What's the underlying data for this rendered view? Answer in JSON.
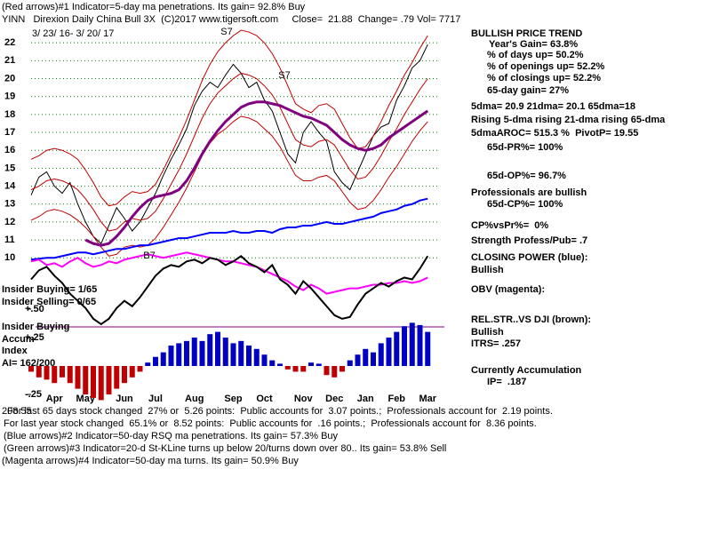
{
  "header": {
    "line1": "(Red arrows)#1 Indicator=5-day ma penetrations. Its gain= 92.8% Buy",
    "line2": "YINN   Direxion Daily China Bull 3X  (C)2017 www.tigersoft.com     Close=  21.88  Change= .79 Vol= 7717",
    "dates": "3/ 23/ 16- 3/ 20/ 17"
  },
  "right_panel": [
    "BULLISH PRICE TREND",
    "Year's Gain= 63.8%",
    "% of days up= 50.2%",
    "% of openings up= 52.2%",
    "% of closings up= 52.2%",
    "65-day gain= 27%",
    "5dma= 20.9 21dma= 20.1 65dma=18",
    "Rising 5-dma rising 21-dma rising 65-dma",
    "5dmaAROC= 515.3 %  PivotP= 19.55",
    "65d-PR%= 100%",
    "65d-OP%= 96.7%",
    "Professionals are bullish",
    "65d-CP%= 100%",
    "CP%vsPr%=  0%",
    "Strength Profess/Pub= .7",
    "CLOSING POWER (blue):",
    "Bullish",
    "OBV (magenta):",
    "REL.STR..VS DJI (brown):",
    "Bullish",
    "ITRS= .257",
    "Currently Accumulation",
    "IP=  .187"
  ],
  "left_panel": [
    "Insider Buying= 1/65",
    "Insider Selling= 0/65",
    "Insider Buying",
    "Accum",
    "Index",
    "AI= 162/200"
  ],
  "footer": [
    "208.55",
    "For last 65 days stock changed  27% or  5.26 points:  Public accounts for  3.07 points.;  Professionals account for  2.19 points.",
    "For last year stock changed  65.1% or  8.52 points:  Public accounts for  .16 points.;  Professionals account for  8.36 points.",
    "(Blue arrows)#2 Indicator=50-day RSQ ma penetrations. Its gain= 57.3% Buy",
    "(Green arrows)#3 Indicator=20-d St-KLine turns up below 20/turns down over 80.. Its gain= 53.8% Sell",
    "(Magenta arrows)#4 Indicator=50-day ma turns. Its gain= 50.9% Buy"
  ],
  "chart_data": {
    "type": "line",
    "categories": [
      null,
      null,
      null,
      "Apr",
      null,
      null,
      null,
      "May",
      null,
      null,
      null,
      null,
      "Jun",
      null,
      null,
      null,
      "Jul",
      null,
      null,
      null,
      null,
      "Aug",
      null,
      null,
      null,
      null,
      "Sep",
      null,
      null,
      null,
      "Oct",
      null,
      null,
      null,
      null,
      "Nov",
      null,
      null,
      null,
      "Dec",
      null,
      null,
      null,
      "Jan",
      null,
      null,
      null,
      "Feb",
      null,
      null,
      null,
      "Mar"
    ],
    "ylim": [
      5.9,
      22.9
    ],
    "yticks": [
      10,
      11,
      12,
      13,
      14,
      15,
      16,
      17,
      18,
      19,
      20,
      21,
      22
    ],
    "grid": true,
    "y2lim": [
      -0.3,
      0.55
    ],
    "y2ticks": [
      {
        "value": 0.5,
        "label": "+.50"
      },
      {
        "value": 0.25,
        "label": "+.25"
      },
      {
        "value": -0.25,
        "label": "-.25"
      }
    ],
    "annotations": [
      "S7",
      "S7",
      "B7"
    ],
    "series": [
      {
        "color": "#000000",
        "values": [
          13.5,
          14.5,
          14.8,
          14.0,
          13.6,
          14.2,
          13.0,
          12.0,
          11.2,
          10.8,
          11.8,
          12.8,
          12.2,
          11.5,
          12.0,
          12.8,
          13.6,
          14.6,
          15.5,
          16.3,
          17.2,
          18.5,
          19.3,
          19.8,
          19.5,
          20.2,
          20.8,
          20.3,
          19.5,
          19.8,
          18.8,
          18.2,
          17.0,
          15.8,
          15.3,
          17.0,
          17.6,
          17.0,
          16.5,
          14.8,
          14.2,
          13.8,
          14.8,
          15.8,
          16.8,
          17.3,
          17.5,
          18.8,
          19.6,
          20.6,
          21.0,
          21.9
        ]
      },
      {
        "color": "#c00000",
        "values": [
          13.8,
          14.0,
          14.3,
          14.4,
          14.3,
          14.1,
          13.8,
          13.3,
          12.7,
          12.0,
          11.5,
          11.6,
          12.0,
          12.2,
          12.1,
          12.2,
          12.6,
          13.3,
          14.1,
          14.9,
          15.8,
          16.8,
          17.8,
          18.6,
          19.2,
          19.6,
          20.0,
          20.3,
          20.2,
          20.0,
          19.6,
          19.1,
          18.4,
          17.5,
          16.6,
          16.3,
          16.2,
          16.5,
          16.6,
          16.3,
          15.6,
          14.9,
          14.4,
          14.5,
          15.0,
          15.7,
          16.5,
          17.2,
          18.0,
          18.7,
          19.4,
          20.0
        ]
      },
      {
        "color": "#c00000",
        "values": [
          15.5,
          15.7,
          16.0,
          16.1,
          16.0,
          15.8,
          15.5,
          14.9,
          14.2,
          13.4,
          12.9,
          13.0,
          13.4,
          13.7,
          13.6,
          13.7,
          14.1,
          14.9,
          15.8,
          16.7,
          17.7,
          18.8,
          19.9,
          20.8,
          21.5,
          22.0,
          22.4,
          22.7,
          22.6,
          22.4,
          22.0,
          21.4,
          20.6,
          19.6,
          18.6,
          18.3,
          18.1,
          18.5,
          18.6,
          18.3,
          17.5,
          16.7,
          16.1,
          16.2,
          16.8,
          17.6,
          18.5,
          19.3,
          20.2,
          20.9,
          21.7,
          22.4
        ]
      },
      {
        "color": "#c00000",
        "values": [
          12.1,
          12.3,
          12.6,
          12.7,
          12.6,
          12.4,
          12.1,
          11.7,
          11.2,
          10.6,
          10.1,
          10.2,
          10.6,
          10.7,
          10.6,
          10.7,
          11.1,
          11.7,
          12.4,
          13.1,
          13.9,
          14.8,
          15.7,
          16.4,
          16.9,
          17.2,
          17.6,
          17.9,
          17.8,
          17.6,
          17.2,
          16.8,
          16.2,
          15.4,
          14.6,
          14.3,
          14.3,
          14.5,
          14.6,
          14.3,
          13.7,
          13.1,
          12.7,
          12.8,
          13.2,
          13.8,
          14.5,
          15.1,
          15.8,
          16.5,
          17.1,
          17.6
        ]
      },
      {
        "color": "#800080",
        "values": [
          null,
          null,
          null,
          null,
          null,
          null,
          null,
          11.0,
          10.8,
          10.7,
          10.8,
          11.2,
          11.7,
          12.3,
          12.8,
          13.2,
          13.4,
          13.5,
          13.6,
          13.8,
          14.3,
          15.0,
          15.8,
          16.5,
          17.1,
          17.6,
          18.0,
          18.4,
          18.6,
          18.7,
          18.7,
          18.6,
          18.5,
          18.3,
          18.1,
          17.9,
          17.8,
          17.6,
          17.4,
          17.0,
          16.6,
          16.3,
          16.1,
          16.0,
          16.1,
          16.3,
          16.7,
          17.0,
          17.3,
          17.6,
          17.9,
          18.2
        ]
      },
      {
        "color": "#0000ff",
        "values": [
          9.9,
          9.95,
          10.0,
          10.0,
          10.1,
          10.2,
          10.3,
          10.3,
          10.2,
          10.3,
          10.4,
          10.5,
          10.5,
          10.6,
          10.7,
          10.7,
          10.8,
          10.9,
          11.0,
          11.1,
          11.1,
          11.2,
          11.3,
          11.4,
          11.4,
          11.4,
          11.5,
          11.4,
          11.4,
          11.5,
          11.5,
          11.4,
          11.6,
          11.7,
          11.7,
          11.8,
          11.8,
          11.9,
          12.0,
          11.9,
          11.9,
          12.0,
          12.1,
          12.2,
          12.3,
          12.5,
          12.6,
          12.7,
          12.9,
          13.0,
          13.2,
          13.3
        ]
      },
      {
        "color": "#ff00ff",
        "values": [
          9.8,
          9.9,
          9.6,
          9.7,
          9.5,
          9.8,
          10.0,
          9.7,
          9.5,
          9.6,
          9.8,
          9.7,
          9.9,
          10.0,
          10.1,
          10.2,
          10.1,
          10.0,
          10.1,
          10.2,
          10.3,
          10.2,
          10.1,
          10.0,
          9.9,
          9.8,
          9.8,
          9.7,
          9.6,
          9.5,
          9.3,
          9.1,
          8.9,
          8.7,
          8.4,
          8.2,
          8.5,
          8.3,
          8.0,
          8.1,
          8.2,
          8.3,
          8.3,
          8.4,
          8.5,
          8.5,
          8.6,
          8.6,
          8.7,
          8.6,
          8.7,
          8.9
        ]
      },
      {
        "color": "#000000",
        "values": [
          8.8,
          9.3,
          9.5,
          9.0,
          8.6,
          8.0,
          7.6,
          7.2,
          6.6,
          6.3,
          6.6,
          7.2,
          7.6,
          7.3,
          7.8,
          8.4,
          9.0,
          9.4,
          9.6,
          9.5,
          9.8,
          9.9,
          9.7,
          10.0,
          9.9,
          9.6,
          9.8,
          10.1,
          9.7,
          9.5,
          9.2,
          9.6,
          8.8,
          8.5,
          8.0,
          8.7,
          8.3,
          7.8,
          7.3,
          6.8,
          6.6,
          6.7,
          7.4,
          8.0,
          8.3,
          8.6,
          8.4,
          8.7,
          8.9,
          8.8,
          9.4,
          10.1
        ]
      },
      {
        "type": "bar",
        "axis": "y2",
        "color": "#0000c0",
        "negative_color": "#c00000",
        "values": [
          -0.05,
          -0.1,
          -0.12,
          -0.15,
          -0.1,
          -0.15,
          -0.2,
          -0.25,
          -0.28,
          -0.3,
          -0.25,
          -0.2,
          -0.15,
          -0.1,
          -0.05,
          0.03,
          0.08,
          0.12,
          0.18,
          0.2,
          0.22,
          0.25,
          0.22,
          0.28,
          0.3,
          0.25,
          0.2,
          0.22,
          0.18,
          0.15,
          0.1,
          0.05,
          0.02,
          -0.03,
          -0.05,
          -0.05,
          0.03,
          0.02,
          -0.08,
          -0.1,
          -0.05,
          0.05,
          0.1,
          0.15,
          0.12,
          0.2,
          0.25,
          0.3,
          0.35,
          0.38,
          0.36,
          0.3
        ]
      }
    ]
  }
}
